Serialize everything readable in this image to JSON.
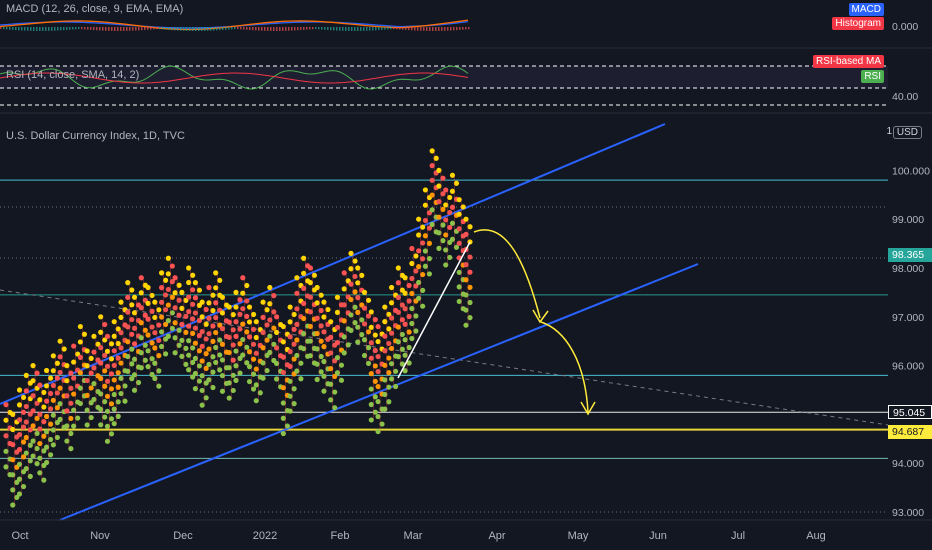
{
  "macd": {
    "title": "MACD (12, 26, close, 9, EMA, EMA)",
    "badge_macd": "MACD",
    "badge_hist": "Histogram",
    "value": "0.000",
    "color_macd_badge": "#2962ff",
    "color_hist_badge": "#f23645"
  },
  "rsi": {
    "title": "RSI (14, close, SMA, 14, 2)",
    "badge_ma": "RSI-based MA",
    "badge_rsi": "RSI",
    "value": "40.00",
    "color_ma_badge": "#f23645",
    "color_rsi_badge": "#4caf50"
  },
  "main": {
    "title": "U.S. Dollar Currency Index, 1D, TVC",
    "currency": "USD",
    "price_current": "98.365",
    "price_white": "95.045",
    "price_yellow": "94.687",
    "color_current": "#26a69a",
    "color_yellow": "#ffeb3b",
    "color_channel": "#2962ff"
  },
  "chart_data": {
    "type": "scatter",
    "title": "U.S. Dollar Currency Index, 1D, TVC",
    "y_ticks": [
      93.0,
      94.0,
      96.0,
      97.0,
      98.0,
      99.0,
      100.0
    ],
    "ylim": [
      92.8,
      100.8
    ],
    "x_ticks": [
      "Oct",
      "Nov",
      "Dec",
      "2022",
      "Feb",
      "Mar",
      "Apr",
      "May",
      "Jun",
      "Jul",
      "Aug"
    ],
    "horizontal_levels": [
      {
        "value": 99.8,
        "color": "#4dd0e1"
      },
      {
        "value": 97.45,
        "color": "#26a69a"
      },
      {
        "value": 95.8,
        "color": "#4dd0e1"
      },
      {
        "value": 95.045,
        "color": "#ffffff"
      },
      {
        "value": 94.687,
        "color": "#ffeb3b"
      },
      {
        "value": 94.1,
        "color": "#80cbc4"
      }
    ],
    "channel_upper": [
      [
        "Oct",
        95.5
      ],
      [
        "Jun",
        101.2
      ]
    ],
    "channel_lower": [
      [
        "Oct",
        92.8
      ],
      [
        "Jun",
        98.1
      ]
    ],
    "series": [
      {
        "values_high": [
          95.2,
          95.0,
          95.5,
          95.8,
          96.0,
          95.6,
          95.9,
          96.2,
          96.5,
          96.0,
          96.4,
          96.8,
          96.3,
          96.6,
          97.0,
          96.6,
          96.9,
          97.3,
          97.7,
          97.4,
          97.8,
          97.6,
          97.3,
          97.9,
          98.2,
          97.8,
          97.5,
          98.0,
          97.7,
          97.3,
          97.6,
          97.9,
          97.4,
          97.2,
          97.5,
          97.8,
          97.2,
          96.9,
          97.3,
          97.6,
          97.0,
          96.8,
          97.2,
          97.8,
          98.2,
          98.0,
          97.6,
          97.3,
          96.9,
          97.4,
          97.9,
          98.3,
          98.0,
          97.5,
          97.1,
          96.8,
          97.2,
          97.6,
          98.0,
          97.8,
          98.4,
          99.0,
          99.6,
          100.4,
          100.0,
          99.6,
          99.9,
          99.4,
          99.0
        ]
      }
    ]
  }
}
